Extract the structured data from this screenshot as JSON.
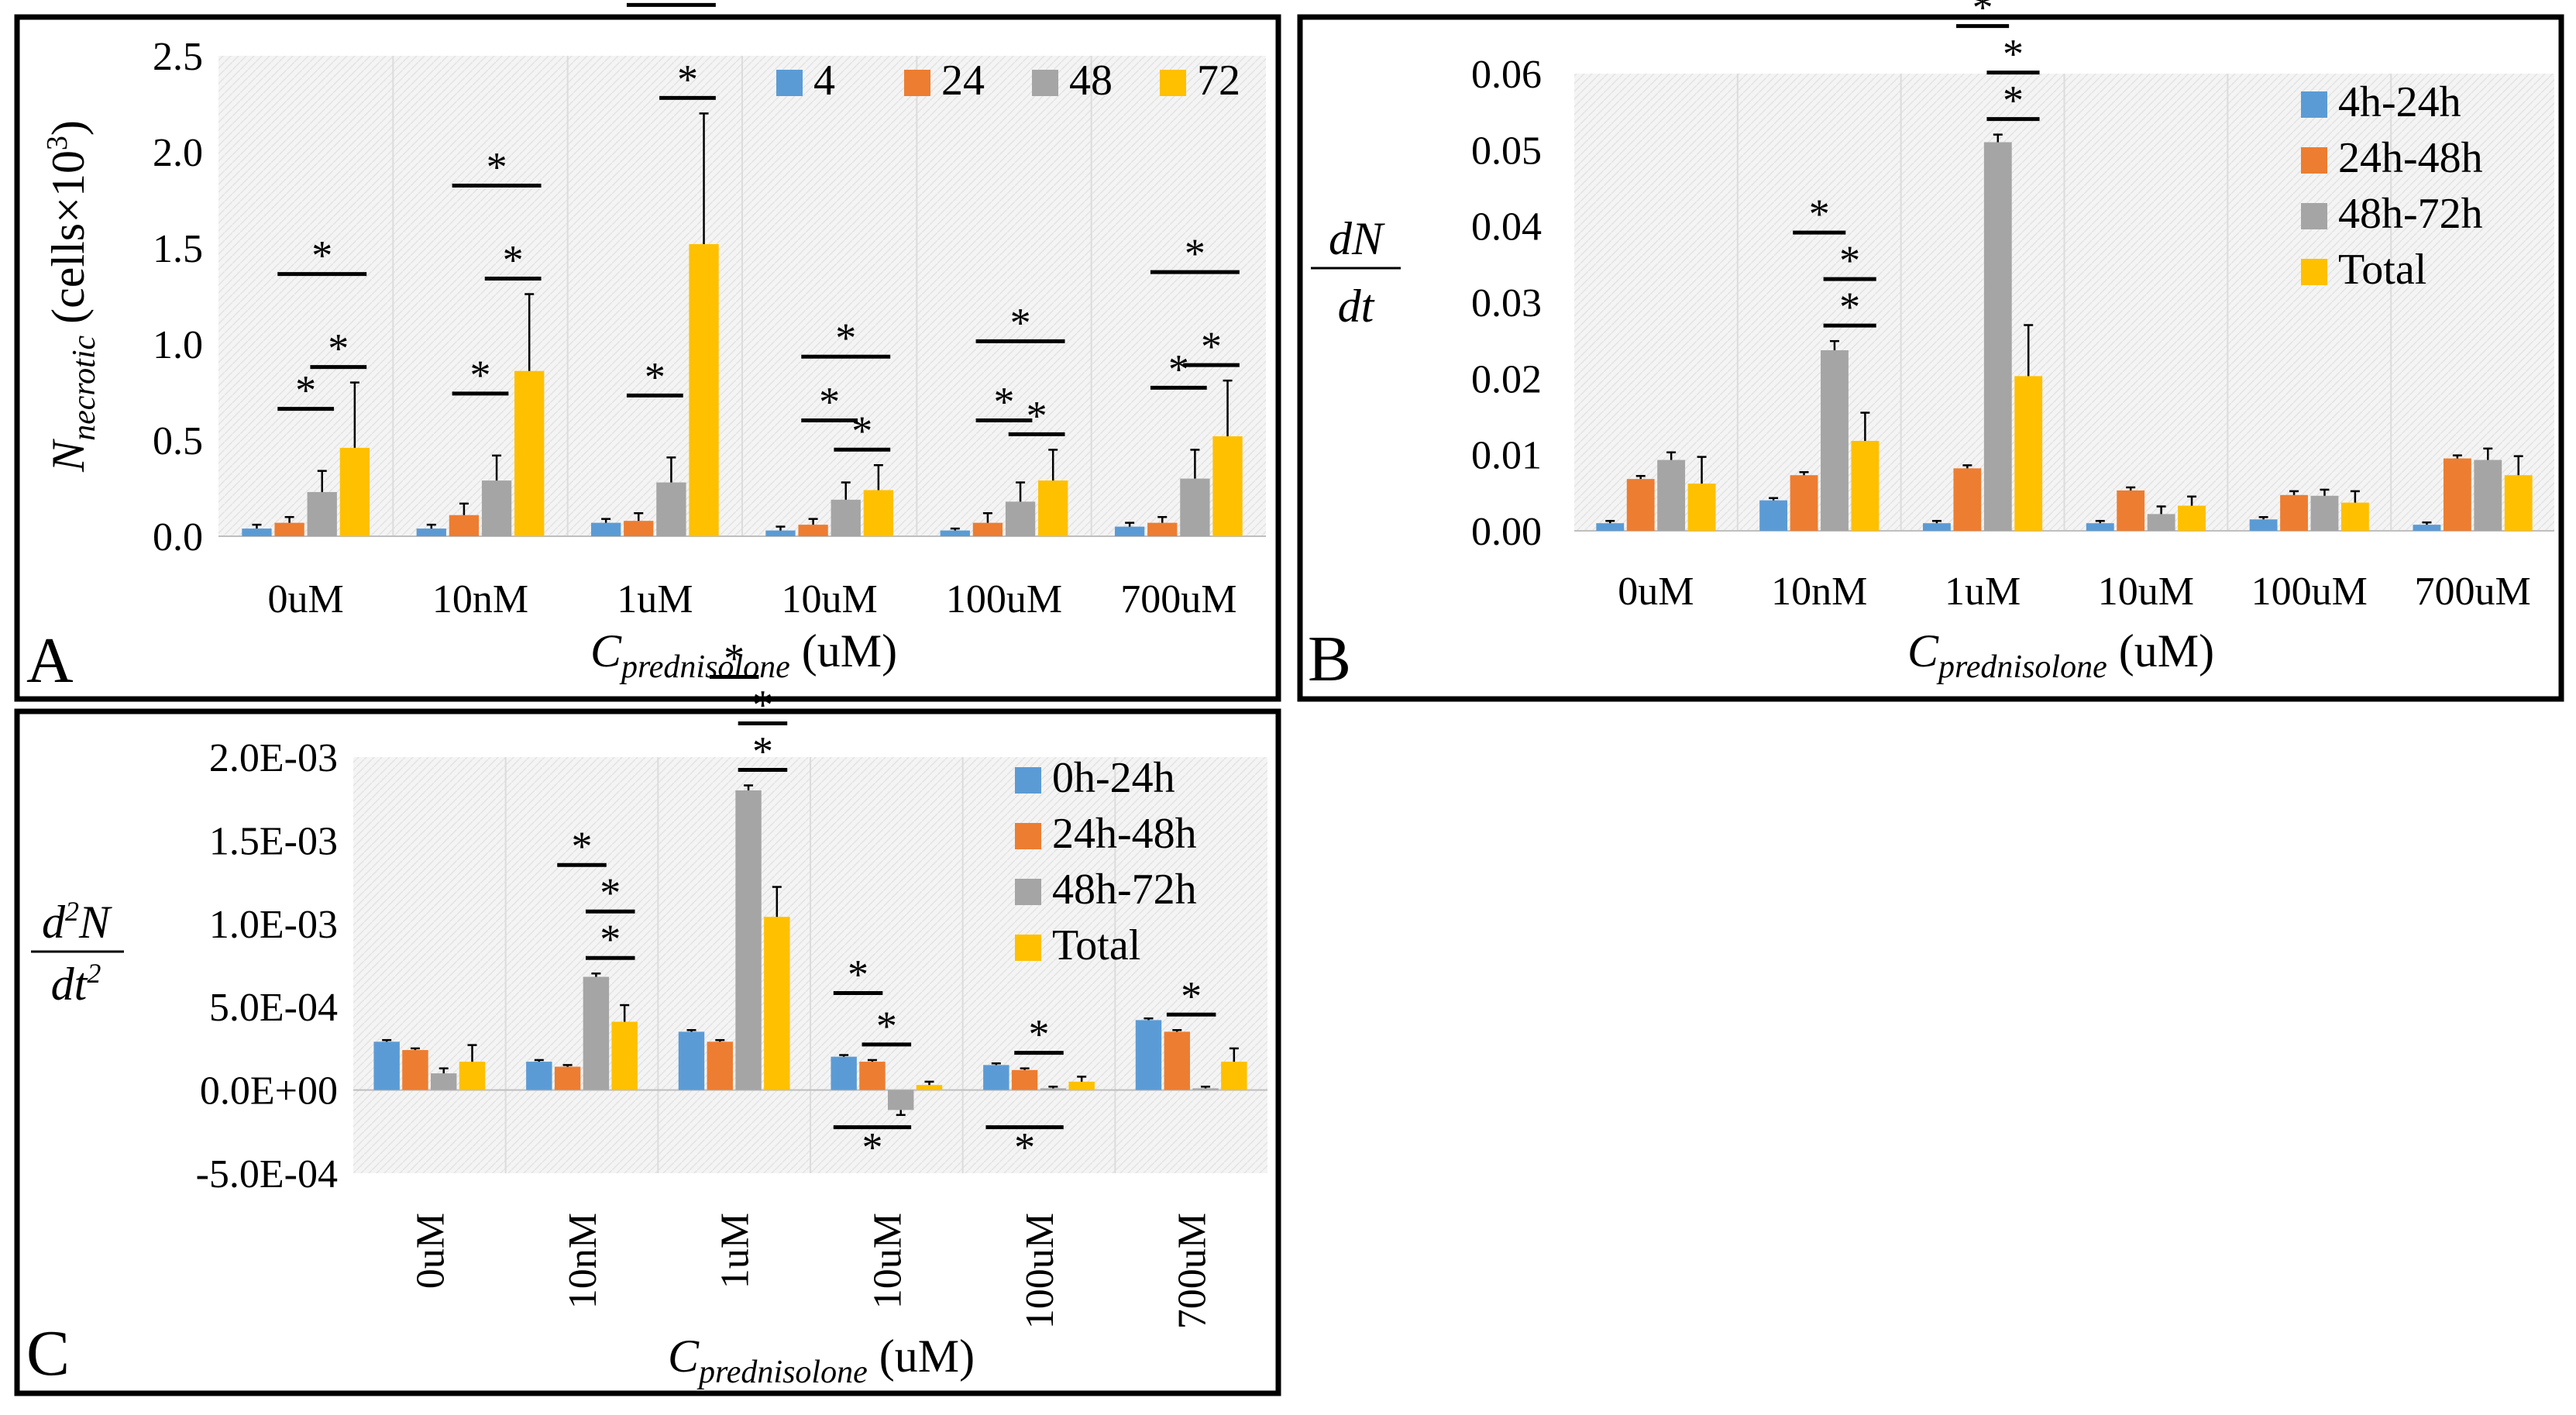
{
  "colors": {
    "blue": "#5B9BD5",
    "orange": "#ED7D31",
    "gray": "#A5A5A5",
    "yellow": "#FFC000"
  },
  "chart_data": [
    {
      "id": "A",
      "type": "bar",
      "panel_label": "A",
      "categories": [
        "0uM",
        "10nM",
        "1uM",
        "10uM",
        "100uM",
        "700uM"
      ],
      "series": [
        {
          "name": "4",
          "values": [
            0.04,
            0.04,
            0.07,
            0.03,
            0.03,
            0.05
          ],
          "errors": [
            0.02,
            0.02,
            0.02,
            0.02,
            0.01,
            0.02
          ]
        },
        {
          "name": "24",
          "values": [
            0.07,
            0.11,
            0.08,
            0.06,
            0.07,
            0.07
          ],
          "errors": [
            0.03,
            0.06,
            0.04,
            0.03,
            0.05,
            0.03
          ]
        },
        {
          "name": "48",
          "values": [
            0.23,
            0.29,
            0.28,
            0.19,
            0.18,
            0.3
          ],
          "errors": [
            0.11,
            0.13,
            0.13,
            0.09,
            0.1,
            0.15
          ]
        },
        {
          "name": "72",
          "values": [
            0.46,
            0.86,
            1.52,
            0.24,
            0.29,
            0.52
          ],
          "errors": [
            0.34,
            0.4,
            0.68,
            0.13,
            0.16,
            0.29
          ]
        }
      ],
      "ylim": [
        0,
        2.5
      ],
      "yticks": [
        "0.0",
        "0.5",
        "1.0",
        "1.5",
        "2.0",
        "2.5"
      ],
      "ylabel_main": "N",
      "ylabel_sub": "necrotic",
      "ylabel_rest": " (cells×10",
      "ylabel_sup": "3",
      "ylabel_close": ")",
      "xlabel_main": "C",
      "xlabel_sub": "prednisolone",
      "xlabel_rest": " (uM)",
      "star": "*",
      "legend": "top-right"
    },
    {
      "id": "B",
      "type": "bar",
      "panel_label": "B",
      "categories": [
        "0uM",
        "10nM",
        "1uM",
        "10uM",
        "100uM",
        "700uM"
      ],
      "series": [
        {
          "name": "4h-24h",
          "values": [
            0.001,
            0.004,
            0.001,
            0.001,
            0.0015,
            0.0008
          ],
          "errors": [
            0.0003,
            0.0003,
            0.0003,
            0.0003,
            0.0003,
            0.0003
          ]
        },
        {
          "name": "24h-48h",
          "values": [
            0.0068,
            0.0073,
            0.0082,
            0.0053,
            0.0047,
            0.0095
          ],
          "errors": [
            0.0004,
            0.0004,
            0.0004,
            0.0004,
            0.0005,
            0.0004
          ]
        },
        {
          "name": "48h-72h",
          "values": [
            0.0093,
            0.0237,
            0.051,
            0.0022,
            0.0046,
            0.0093
          ],
          "errors": [
            0.001,
            0.0012,
            0.001,
            0.001,
            0.0008,
            0.0015
          ]
        },
        {
          "name": "Total",
          "values": [
            0.0062,
            0.0118,
            0.0203,
            0.0033,
            0.0037,
            0.0073
          ],
          "errors": [
            0.0035,
            0.0037,
            0.0067,
            0.0012,
            0.0015,
            0.0025
          ]
        }
      ],
      "ylim": [
        0,
        0.06
      ],
      "yticks": [
        "0.00",
        "0.01",
        "0.02",
        "0.03",
        "0.04",
        "0.05",
        "0.06"
      ],
      "ylabel_num": "dN",
      "ylabel_den": "dt",
      "xlabel_main": "C",
      "xlabel_sub": "prednisolone",
      "xlabel_rest": " (uM)",
      "star": "*",
      "legend": "top-right"
    },
    {
      "id": "C",
      "type": "bar",
      "panel_label": "C",
      "categories": [
        "0uM",
        "10nM",
        "1uM",
        "10uM",
        "100uM",
        "700uM"
      ],
      "series": [
        {
          "name": "0h-24h",
          "values": [
            0.00029,
            0.00017,
            0.00035,
            0.0002,
            0.00015,
            0.00042
          ],
          "errors": [
            1e-05,
            1e-05,
            1e-05,
            1e-05,
            1e-05,
            1e-05
          ]
        },
        {
          "name": "24h-48h",
          "values": [
            0.00024,
            0.00014,
            0.00029,
            0.00017,
            0.00012,
            0.00035
          ],
          "errors": [
            1e-05,
            1e-05,
            1e-05,
            1e-05,
            1e-05,
            1e-05
          ]
        },
        {
          "name": "48h-72h",
          "values": [
            0.0001,
            0.00068,
            0.0018,
            -0.00012,
            1e-05,
            1e-05
          ],
          "errors": [
            3e-05,
            2e-05,
            3e-05,
            3e-05,
            1e-05,
            1e-05
          ]
        },
        {
          "name": "Total",
          "values": [
            0.00017,
            0.00041,
            0.00104,
            3e-05,
            5e-05,
            0.00017
          ],
          "errors": [
            0.0001,
            0.0001,
            0.00018,
            2e-05,
            3e-05,
            8e-05
          ]
        }
      ],
      "ylim": [
        -0.0005,
        0.002
      ],
      "yticks": [
        "-5.0E-04",
        "0.0E+00",
        "5.0E-04",
        "1.0E-03",
        "1.5E-03",
        "2.0E-03"
      ],
      "ylabel_num_d": "d",
      "ylabel_num_sup": "2",
      "ylabel_num_n": "N",
      "ylabel_den_dt": "dt",
      "ylabel_den_sup": "2",
      "xlabel_main": "C",
      "xlabel_sub": "prednisolone",
      "xlabel_rest": " (uM)",
      "star": "*",
      "legend": "top-right"
    }
  ]
}
